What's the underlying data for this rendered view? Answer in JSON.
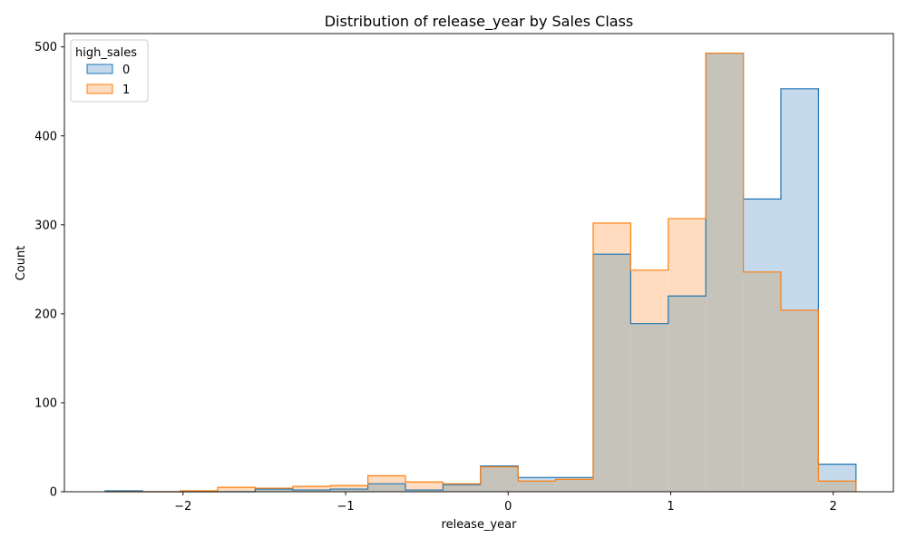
{
  "chart_data": {
    "type": "histogram",
    "title": "Distribution of release_year by Sales Class",
    "xlabel": "release_year",
    "ylabel": "Count",
    "xlim": [
      -2.73,
      2.37
    ],
    "ylim": [
      0,
      515
    ],
    "x_ticks": [
      -2,
      -1,
      0,
      1,
      2
    ],
    "x_tick_labels": [
      "−2",
      "−1",
      "0",
      "1",
      "2"
    ],
    "y_ticks": [
      0,
      100,
      200,
      300,
      400,
      500
    ],
    "y_tick_labels": [
      "0",
      "100",
      "200",
      "300",
      "400",
      "500"
    ],
    "element": "step",
    "fill_alpha": 0.25,
    "grid": false,
    "legend": {
      "title": "high_sales",
      "placement": "upper-left"
    },
    "bin_edges": [
      -2.48,
      -2.249,
      -2.018,
      -1.787,
      -1.556,
      -1.325,
      -1.094,
      -0.863,
      -0.632,
      -0.401,
      -0.17,
      0.061,
      0.292,
      0.523,
      0.754,
      0.985,
      1.216,
      1.447,
      1.678,
      1.909,
      2.14
    ],
    "series": [
      {
        "name": "0",
        "color": "#1f77b4",
        "fill": "#c5d9ec",
        "counts": [
          1,
          0,
          0,
          0,
          3,
          2,
          3,
          9,
          2,
          8,
          29,
          16,
          16,
          267,
          189,
          220,
          493,
          329,
          453,
          31
        ]
      },
      {
        "name": "1",
        "color": "#ff7f0e",
        "fill": "#ffdcbf",
        "counts": [
          0,
          0,
          1,
          5,
          4,
          6,
          7,
          18,
          11,
          9,
          28,
          12,
          14,
          302,
          249,
          307,
          493,
          247,
          204,
          12
        ]
      }
    ],
    "overlap_fill": "#c6c3bb"
  }
}
